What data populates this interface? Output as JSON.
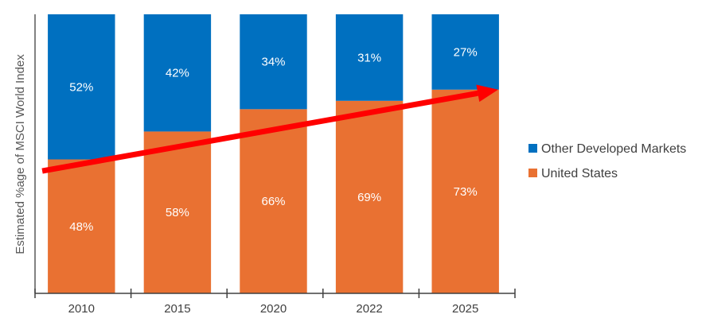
{
  "chart_data": {
    "type": "bar",
    "stacked": true,
    "title": "",
    "xlabel": "",
    "ylabel": "Estimated %age of MSCI World Index",
    "categories": [
      "2010",
      "2015",
      "2020",
      "2022",
      "2025"
    ],
    "ylim": [
      0,
      100
    ],
    "grid": false,
    "legend_position": "right",
    "series": [
      {
        "name": "United States",
        "color": "#E97132",
        "values": [
          48,
          58,
          66,
          69,
          73
        ],
        "labels": [
          "48%",
          "58%",
          "66%",
          "69%",
          "73%"
        ]
      },
      {
        "name": "Other Developed Markets",
        "color": "#0070C0",
        "values": [
          52,
          42,
          34,
          31,
          27
        ],
        "labels": [
          "52%",
          "42%",
          "34%",
          "31%",
          "27%"
        ]
      }
    ],
    "legend": [
      {
        "name": "Other Developed Markets",
        "color": "#0070C0"
      },
      {
        "name": "United States",
        "color": "#E97132"
      }
    ],
    "annotations": [
      {
        "type": "arrow",
        "color": "#FF0000",
        "description": "upward trend arrow from 2010 to 2025 tracking United States share",
        "from": {
          "category": "2010",
          "value": 45
        },
        "to": {
          "category": "2025",
          "value": 73
        }
      }
    ]
  }
}
